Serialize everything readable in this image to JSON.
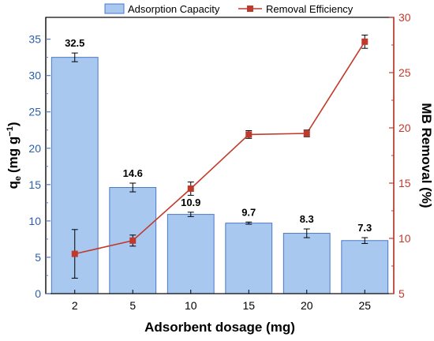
{
  "chart_data": {
    "type": "bar+line",
    "categories": [
      "2",
      "5",
      "10",
      "15",
      "20",
      "25"
    ],
    "xlabel": "Adsorbent dosage (mg)",
    "ylabel_left_main": "q",
    "ylabel_left_sub": "e",
    "ylabel_left_unit": "(mg g",
    "ylabel_left_sup": "−1",
    "ylabel_left_close": ")",
    "ylabel_right": "MB Removal (%)",
    "ylim_left": [
      0,
      38
    ],
    "ylim_right": [
      5,
      30
    ],
    "yticks_left": [
      "0",
      "5",
      "10",
      "15",
      "20",
      "25",
      "30",
      "35"
    ],
    "yticks_right": [
      "5",
      "10",
      "15",
      "20",
      "25",
      "30"
    ],
    "grid": false,
    "legend_position": "top",
    "series": [
      {
        "name": "Adsorption Capacity",
        "kind": "bar",
        "axis": "left",
        "color": "#a9c8f0",
        "edge_color": "#4a78c8",
        "values": [
          32.5,
          14.6,
          10.9,
          9.7,
          8.3,
          7.3
        ],
        "errors": [
          0.6,
          0.6,
          0.3,
          0.15,
          0.6,
          0.4
        ],
        "labels": [
          "32.5",
          "14.6",
          "10.9",
          "9.7",
          "8.3",
          "7.3"
        ]
      },
      {
        "name": "Removal Efficiency",
        "kind": "line",
        "axis": "right",
        "color": "#c0392b",
        "values": [
          8.6,
          9.8,
          14.5,
          19.4,
          19.5,
          27.8
        ],
        "errors": [
          2.2,
          0.5,
          0.6,
          0.35,
          0.3,
          0.6
        ]
      }
    ]
  }
}
